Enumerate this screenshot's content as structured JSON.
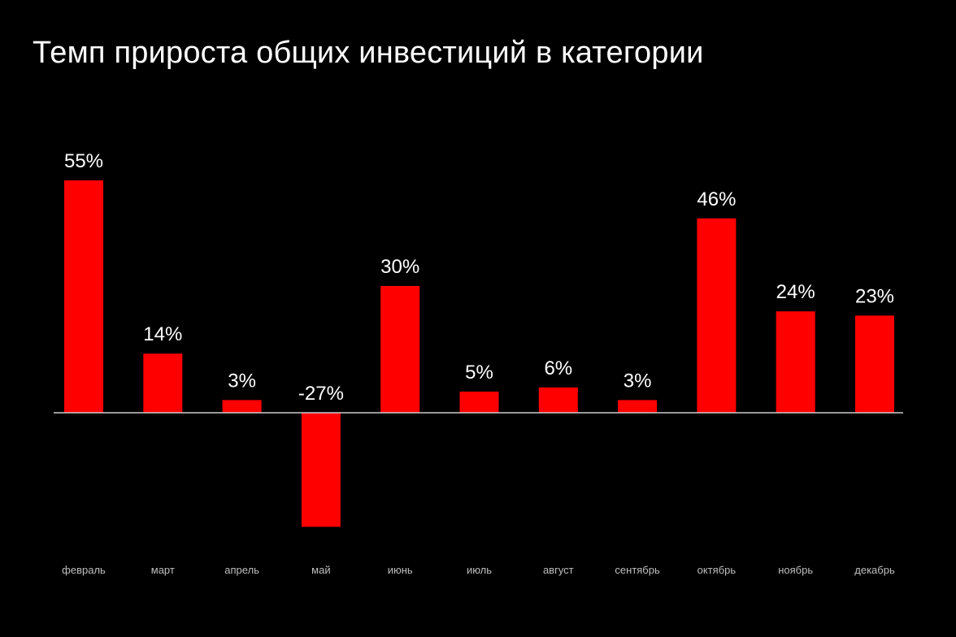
{
  "chart_data": {
    "type": "bar",
    "title": "Темп прироста общих инвестиций в категории",
    "xlabel": "",
    "ylabel": "",
    "categories": [
      "февраль",
      "март",
      "апрель",
      "май",
      "июнь",
      "июль",
      "август",
      "сентябрь",
      "октябрь",
      "ноябрь",
      "декабрь"
    ],
    "values": [
      55,
      14,
      3,
      -27,
      30,
      5,
      6,
      3,
      46,
      24,
      23
    ],
    "data_labels": [
      "55%",
      "14%",
      "3%",
      "-27%",
      "30%",
      "5%",
      "6%",
      "3%",
      "46%",
      "24%",
      "23%"
    ],
    "ylim": [
      -27,
      55
    ],
    "grid": false,
    "legend": "none",
    "colors": {
      "background": "#000000",
      "bar": "#ff0000",
      "baseline": "#cccccc",
      "text": "#ffffff",
      "tick_text": "#bfbfbf"
    }
  }
}
